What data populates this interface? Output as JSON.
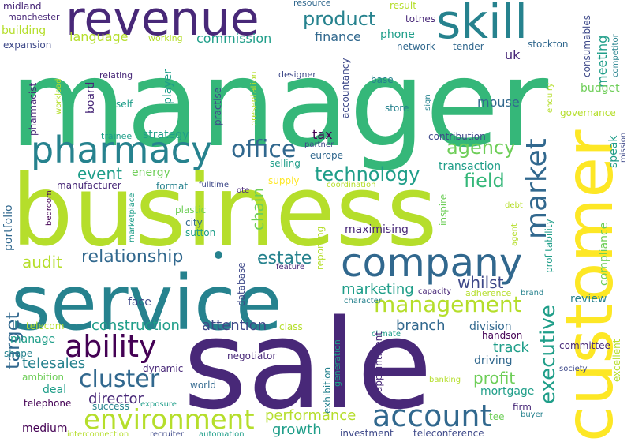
{
  "words": {
    "manager": "manager",
    "business": "business",
    "service": "service",
    "sale": "sale",
    "customer": "customer",
    "company": "company",
    "revenue": "revenue",
    "skill": "skill",
    "pharmacy": "pharmacy",
    "account": "account",
    "environment": "environment",
    "management": "management",
    "ability": "ability",
    "cluster": "cluster",
    "market": "market",
    "office": "office",
    "technology": "technology",
    "executive": "executive",
    "relationship": "relationship",
    "product": "product",
    "agency": "agency",
    "event": "event",
    "target": "target",
    "audit": "audit",
    "field": "field",
    "estate": "estate",
    "construction": "construction",
    "profit": "profit",
    "director": "director",
    "telesales": "telesales",
    "performance": "performance",
    "growth": "growth",
    "chain": "chain",
    "attention": "attention",
    "branch": "branch",
    "marketing": "marketing",
    "whilst": "whilst",
    "track": "track",
    "language": "language",
    "commission": "commission",
    "finance": "finance",
    "phone": "phone",
    "building": "building",
    "expansion": "expansion",
    "midland": "midland",
    "manchester": "manchester",
    "resource": "resource",
    "result": "result",
    "totnes": "totnes",
    "network": "network",
    "tender": "tender",
    "stockton": "stockton",
    "uk": "uk",
    "meeting": "meeting",
    "consumables": "consumables",
    "competitor": "competitor",
    "working": "working",
    "designer": "designer",
    "accountancy": "accountancy",
    "base": "base",
    "mouse": "mouse",
    "budget": "budget",
    "governance": "governance",
    "enquiry": "enquiry",
    "sign": "sign",
    "store": "store",
    "tax": "tax",
    "contribution": "contribution",
    "partner": "partner",
    "selling": "selling",
    "europe": "europe",
    "transaction": "transaction",
    "speak": "speak",
    "mission": "mission",
    "pharmacist": "pharmacist",
    "workload": "workload",
    "relating": "relating",
    "board": "board",
    "self": "self",
    "player": "player",
    "practise": "practise",
    "presentation": "presentation",
    "trainee": "trainee",
    "strategy": "strategy",
    "energy": "energy",
    "manufacturer": "manufacturer",
    "format": "format",
    "fulltime": "fulltime",
    "ote": "ote",
    "supply": "supply",
    "coordination": "coordination",
    "portfolio": "portfolio",
    "bedroom": "bedroom",
    "marketplace": "marketplace",
    "plastic": "plastic",
    "city": "city",
    "sutton": "sutton",
    "maximising": "maximising",
    "inspire": "inspire",
    "debt": "debt",
    "profitability": "profitability",
    "compliance": "compliance",
    "agent": "agent",
    "reporting": "reporting",
    "database": "database",
    "feature": "feature",
    "capacity": "capacity",
    "adherence": "adherence",
    "brand": "brand",
    "review": "review",
    "face": "face",
    "character": "character",
    "telecom": "telecom",
    "class": "class",
    "climate": "climate",
    "division": "division",
    "handson": "handson",
    "committee": "committee",
    "excellent": "excellent",
    "manage": "manage",
    "shape": "shape",
    "negotiator": "negotiator",
    "exhibition": "exhibition",
    "generation": "generation",
    "appointment": "appointment",
    "driving": "driving",
    "society": "society",
    "ambition": "ambition",
    "dynamic": "dynamic",
    "deal": "deal",
    "world": "world",
    "banking": "banking",
    "mortgage": "mortgage",
    "telephone": "telephone",
    "success": "success",
    "exposure": "exposure",
    "firm": "firm",
    "buyer": "buyer",
    "tee": "tee",
    "medium": "medium",
    "interconnection": "interconnection",
    "recruiter": "recruiter",
    "automation": "automation",
    "investment": "investment",
    "teleconference": "teleconference"
  }
}
